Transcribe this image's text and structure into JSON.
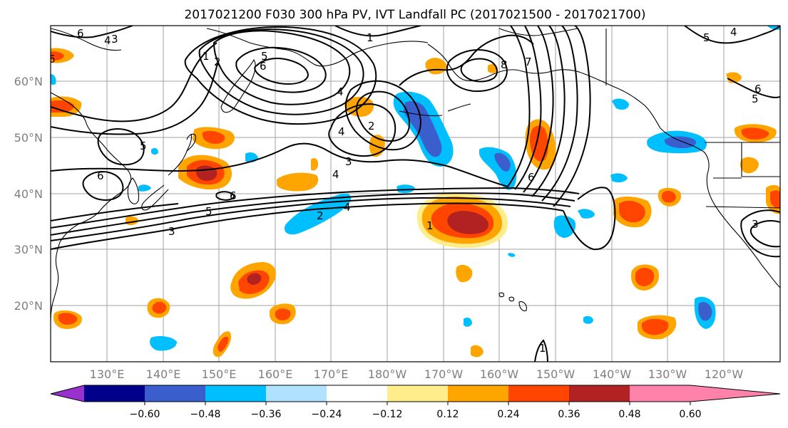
{
  "title": "2017021200 F030 300 hPa PV, IVT Landfall PC (2017021500 - 2017021700)",
  "map": {
    "lat_labels": [
      "60°N",
      "50°N",
      "40°N",
      "30°N",
      "20°N"
    ],
    "lon_labels": [
      "130°E",
      "140°E",
      "150°E",
      "160°E",
      "170°E",
      "180°W",
      "170°W",
      "160°W",
      "150°W",
      "140°W",
      "130°W",
      "120°W"
    ],
    "contour_labels": [
      "6",
      "4",
      "3",
      "1",
      "2",
      "6",
      "5",
      "1",
      "8",
      "7",
      "4",
      "2",
      "4",
      "3",
      "4",
      "5",
      "6",
      "5",
      "6",
      "6",
      "2",
      "5",
      "4",
      "3",
      "1",
      "6",
      "1",
      "5",
      "4",
      "6",
      "3"
    ]
  },
  "colorbar": {
    "tick_labels": [
      "−0.60",
      "−0.48",
      "−0.36",
      "−0.24",
      "−0.12",
      "0.12",
      "0.24",
      "0.36",
      "0.48",
      "0.60"
    ],
    "colors": [
      "#9932cc",
      "#00008b",
      "#3a5fcd",
      "#00bfff",
      "#b0e2ff",
      "#ffffff",
      "#ffec8b",
      "#ffa500",
      "#ff4500",
      "#b22222",
      "#ff82ab"
    ]
  },
  "colors": {
    "grid": "#a0a0a0",
    "contour": "#000000",
    "coast": "#000000"
  }
}
